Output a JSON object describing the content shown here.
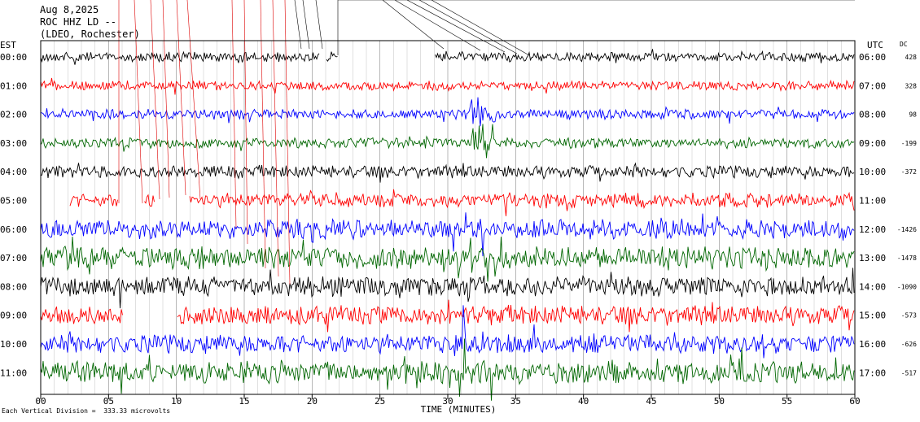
{
  "header": {
    "date": "Aug 8,2025",
    "station": "ROC HHZ LD --",
    "network": "(LDEO, Rochester)"
  },
  "left_axis_title": "EST",
  "right_axis_title": "UTC",
  "dc_title": "DC",
  "footer": "Each Vertical Division =  333.33 microvolts",
  "colors": {
    "black": "#000000",
    "red": "#ff0000",
    "blue": "#0000ff",
    "green": "#006600"
  },
  "chart_data": {
    "type": "line",
    "title": "",
    "xlabel": "TIME (MINUTES)",
    "xlim": [
      0,
      60
    ],
    "x_ticks": [
      "00",
      "05",
      "10",
      "15",
      "20",
      "25",
      "30",
      "35",
      "40",
      "45",
      "50",
      "55",
      "60"
    ],
    "series": [
      {
        "est": "00:00",
        "utc": "06:00",
        "dc": "428",
        "color": "black",
        "level": 1.0
      },
      {
        "est": "01:00",
        "utc": "07:00",
        "dc": "328",
        "color": "red",
        "level": 1.0
      },
      {
        "est": "02:00",
        "utc": "08:00",
        "dc": "98",
        "color": "blue",
        "level": 1.0
      },
      {
        "est": "03:00",
        "utc": "09:00",
        "dc": "-199",
        "color": "green",
        "level": 1.1
      },
      {
        "est": "04:00",
        "utc": "10:00",
        "dc": "-372",
        "color": "black",
        "level": 1.3
      },
      {
        "est": "05:00",
        "utc": "11:00",
        "dc": "",
        "color": "red",
        "level": 1.5
      },
      {
        "est": "06:00",
        "utc": "12:00",
        "dc": "-1426",
        "color": "blue",
        "level": 2.0
      },
      {
        "est": "07:00",
        "utc": "13:00",
        "dc": "-1478",
        "color": "green",
        "level": 2.4
      },
      {
        "est": "08:00",
        "utc": "14:00",
        "dc": "-1090",
        "color": "black",
        "level": 2.1
      },
      {
        "est": "09:00",
        "utc": "15:00",
        "dc": "-573",
        "color": "red",
        "level": 2.0
      },
      {
        "est": "10:00",
        "utc": "16:00",
        "dc": "-626",
        "color": "blue",
        "level": 2.0
      },
      {
        "est": "11:00",
        "utc": "17:00",
        "dc": "-517",
        "color": "green",
        "level": 2.3
      }
    ]
  }
}
